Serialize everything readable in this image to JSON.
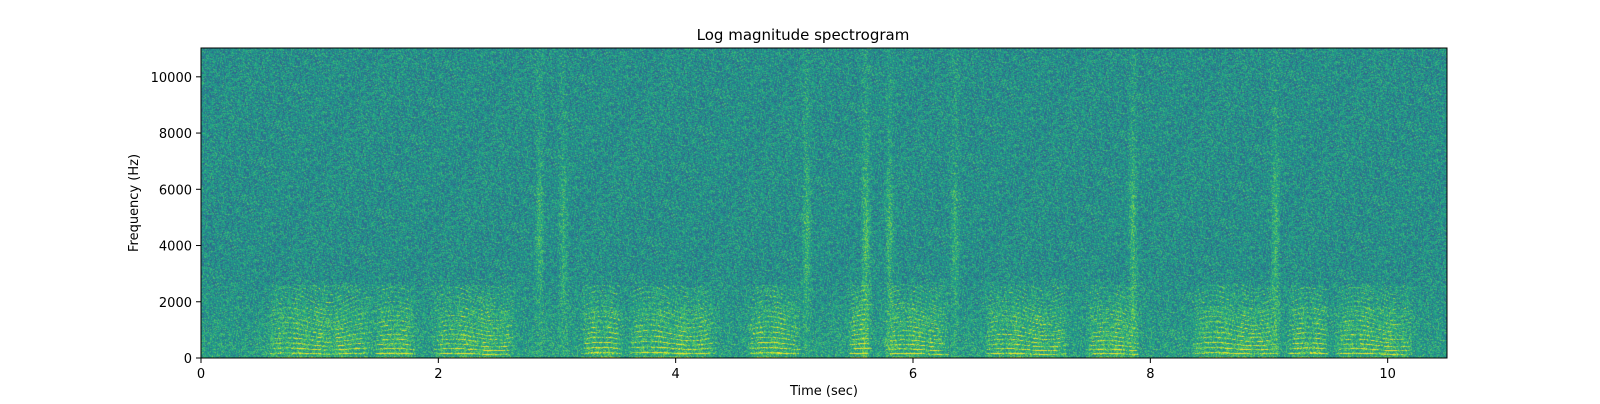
{
  "chart_data": {
    "type": "heatmap",
    "title": "Log magnitude spectrogram",
    "xlabel": "Time (sec)",
    "ylabel": "Frequency (Hz)",
    "xlim": [
      0,
      10.5
    ],
    "ylim": [
      0,
      11025
    ],
    "x_ticks": [
      0,
      2,
      4,
      6,
      8,
      10
    ],
    "y_ticks": [
      0,
      2000,
      4000,
      6000,
      8000,
      10000
    ],
    "x_tick_labels": [
      "0",
      "2",
      "4",
      "6",
      "8",
      "10"
    ],
    "y_tick_labels": [
      "0",
      "2000",
      "4000",
      "6000",
      "8000",
      "10000"
    ],
    "colormap": "viridis",
    "background_level": 0.5,
    "voiced_segments": [
      {
        "start": 0.55,
        "end": 1.45,
        "f0": 160
      },
      {
        "start": 1.45,
        "end": 1.8,
        "f0": 150
      },
      {
        "start": 1.95,
        "end": 2.65,
        "f0": 150
      },
      {
        "start": 3.2,
        "end": 3.55,
        "f0": 165
      },
      {
        "start": 3.6,
        "end": 4.35,
        "f0": 175
      },
      {
        "start": 4.6,
        "end": 5.05,
        "f0": 165
      },
      {
        "start": 5.45,
        "end": 5.65,
        "f0": 155
      },
      {
        "start": 5.75,
        "end": 6.3,
        "f0": 145
      },
      {
        "start": 6.6,
        "end": 7.3,
        "f0": 150
      },
      {
        "start": 7.45,
        "end": 7.9,
        "f0": 140
      },
      {
        "start": 8.35,
        "end": 9.1,
        "f0": 165
      },
      {
        "start": 9.15,
        "end": 9.5,
        "f0": 160
      },
      {
        "start": 9.55,
        "end": 10.2,
        "f0": 150
      }
    ],
    "fricative_bursts": [
      {
        "t": 2.85,
        "level": 0.6
      },
      {
        "t": 3.05,
        "level": 0.55
      },
      {
        "t": 5.1,
        "level": 0.65
      },
      {
        "t": 5.6,
        "level": 0.8
      },
      {
        "t": 5.8,
        "level": 0.6
      },
      {
        "t": 6.35,
        "level": 0.55
      },
      {
        "t": 7.85,
        "level": 0.7
      },
      {
        "t": 9.05,
        "level": 0.65
      }
    ]
  }
}
